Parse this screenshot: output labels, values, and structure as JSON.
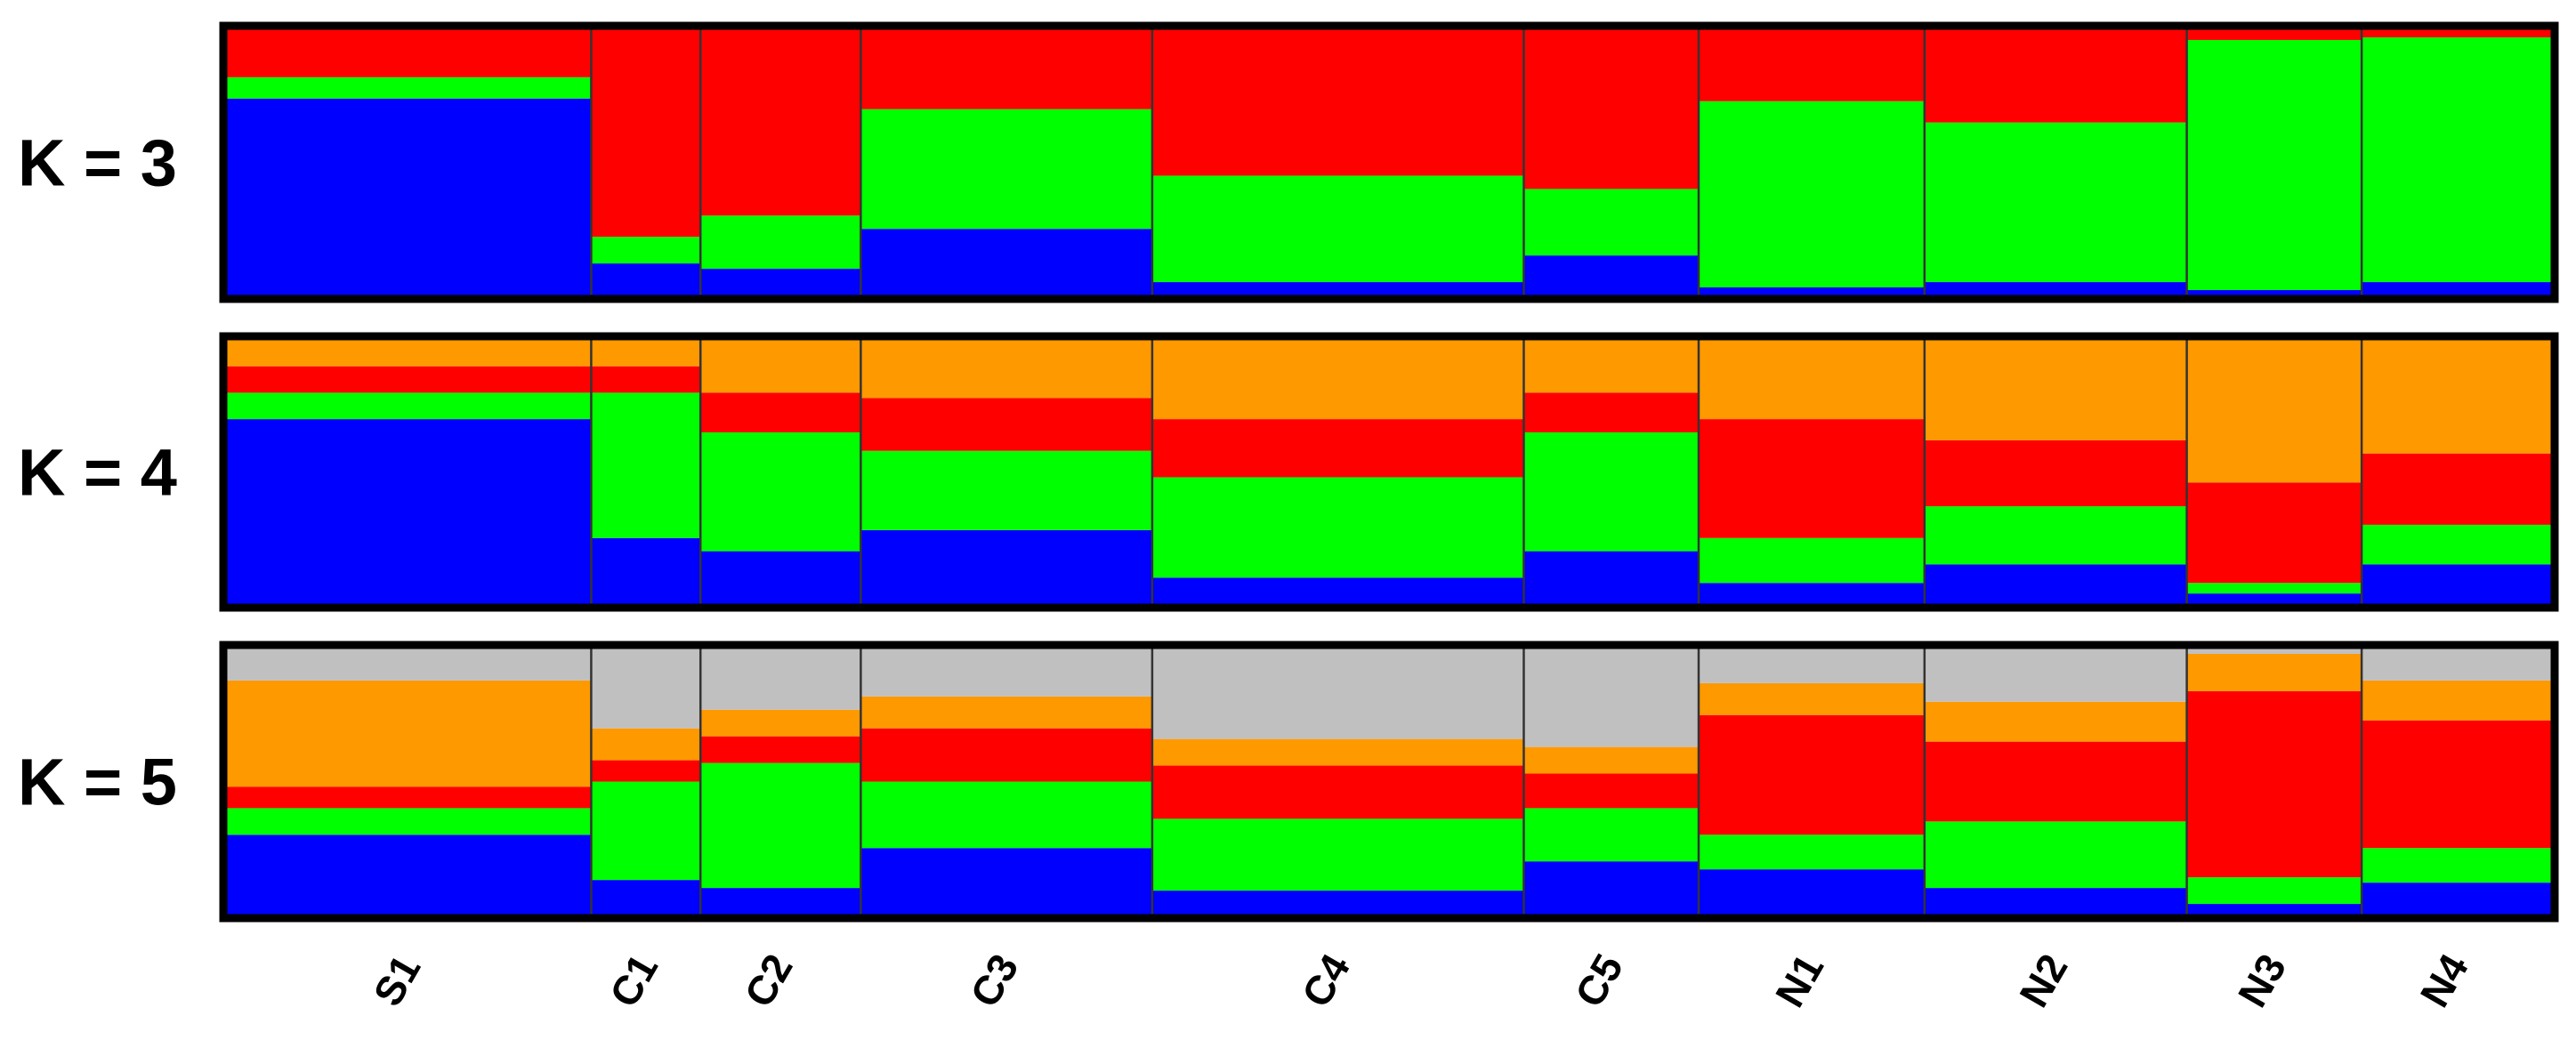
{
  "chart_data": {
    "type": "bar",
    "stacked": true,
    "categories": [
      "S1",
      "C1",
      "C2",
      "C3",
      "C4",
      "C5",
      "N1",
      "N2",
      "N3",
      "N4"
    ],
    "sample_sizes": [
      50,
      15,
      22,
      40,
      51,
      24,
      31,
      36,
      24,
      26
    ],
    "ylim": [
      0,
      1
    ],
    "panels": [
      {
        "title": "K = 3",
        "series": [
          {
            "color": "#0000ff",
            "values": [
              0.74,
              0.12,
              0.1,
              0.25,
              0.05,
              0.15,
              0.03,
              0.05,
              0.02,
              0.05
            ]
          },
          {
            "color": "#00ff00",
            "values": [
              0.08,
              0.1,
              0.2,
              0.45,
              0.4,
              0.25,
              0.7,
              0.6,
              0.94,
              0.92
            ]
          },
          {
            "color": "#ff0000",
            "values": [
              0.18,
              0.78,
              0.7,
              0.3,
              0.55,
              0.6,
              0.27,
              0.35,
              0.04,
              0.03
            ]
          }
        ]
      },
      {
        "title": "K = 4",
        "series": [
          {
            "color": "#0000ff",
            "values": [
              0.7,
              0.25,
              0.2,
              0.28,
              0.1,
              0.2,
              0.08,
              0.15,
              0.04,
              0.15
            ]
          },
          {
            "color": "#00ff00",
            "values": [
              0.1,
              0.55,
              0.45,
              0.3,
              0.38,
              0.45,
              0.17,
              0.22,
              0.04,
              0.15
            ]
          },
          {
            "color": "#ff0000",
            "values": [
              0.1,
              0.1,
              0.15,
              0.2,
              0.22,
              0.15,
              0.45,
              0.25,
              0.38,
              0.27
            ]
          },
          {
            "color": "#ff9900",
            "values": [
              0.1,
              0.1,
              0.2,
              0.22,
              0.3,
              0.2,
              0.3,
              0.38,
              0.54,
              0.43
            ]
          }
        ]
      },
      {
        "title": "K = 5",
        "series": [
          {
            "color": "#0000ff",
            "values": [
              0.3,
              0.13,
              0.1,
              0.25,
              0.09,
              0.2,
              0.17,
              0.1,
              0.04,
              0.12
            ]
          },
          {
            "color": "#00ff00",
            "values": [
              0.1,
              0.37,
              0.47,
              0.25,
              0.27,
              0.2,
              0.13,
              0.25,
              0.1,
              0.13
            ]
          },
          {
            "color": "#ff0000",
            "values": [
              0.08,
              0.08,
              0.1,
              0.2,
              0.2,
              0.13,
              0.45,
              0.3,
              0.7,
              0.48
            ]
          },
          {
            "color": "#ff9900",
            "values": [
              0.4,
              0.12,
              0.1,
              0.12,
              0.1,
              0.1,
              0.12,
              0.15,
              0.14,
              0.15
            ]
          },
          {
            "color": "#c0c0c0",
            "values": [
              0.12,
              0.3,
              0.23,
              0.18,
              0.34,
              0.37,
              0.13,
              0.2,
              0.02,
              0.12
            ]
          }
        ]
      }
    ]
  }
}
